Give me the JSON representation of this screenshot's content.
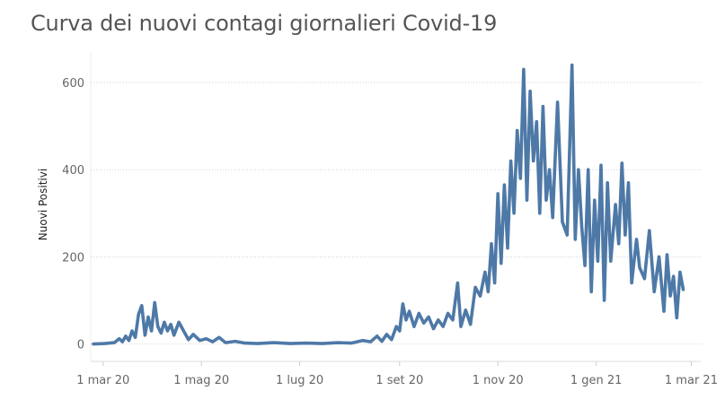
{
  "chart_data": {
    "type": "line",
    "title": "Curva dei nuovi contagi giornalieri Covid-19",
    "xlabel": "",
    "ylabel": "Nuovi Positivi",
    "x_range": [
      "2020-02-24",
      "2021-03-08"
    ],
    "ylim": [
      -40,
      670
    ],
    "y_ticks": [
      0,
      200,
      400,
      600
    ],
    "x_ticks": [
      {
        "date": "2020-03-01",
        "label": "1 mar 20"
      },
      {
        "date": "2020-05-01",
        "label": "1 mag 20"
      },
      {
        "date": "2020-07-01",
        "label": "1 lug 20"
      },
      {
        "date": "2020-09-01",
        "label": "1 set 20"
      },
      {
        "date": "2020-11-01",
        "label": "1 nov 20"
      },
      {
        "date": "2021-01-01",
        "label": "1 gen 21"
      },
      {
        "date": "2021-03-01",
        "label": "1 mar 21"
      }
    ],
    "grid": "horizontal dotted",
    "line_color": "#4e79a7",
    "series": [
      {
        "points": [
          [
            "2020-02-24",
            0
          ],
          [
            "2020-03-02",
            1
          ],
          [
            "2020-03-08",
            3
          ],
          [
            "2020-03-11",
            12
          ],
          [
            "2020-03-13",
            5
          ],
          [
            "2020-03-15",
            18
          ],
          [
            "2020-03-17",
            8
          ],
          [
            "2020-03-19",
            30
          ],
          [
            "2020-03-21",
            15
          ],
          [
            "2020-03-23",
            68
          ],
          [
            "2020-03-25",
            88
          ],
          [
            "2020-03-27",
            20
          ],
          [
            "2020-03-29",
            62
          ],
          [
            "2020-03-31",
            30
          ],
          [
            "2020-04-02",
            95
          ],
          [
            "2020-04-04",
            40
          ],
          [
            "2020-04-06",
            25
          ],
          [
            "2020-04-08",
            50
          ],
          [
            "2020-04-10",
            30
          ],
          [
            "2020-04-12",
            45
          ],
          [
            "2020-04-14",
            20
          ],
          [
            "2020-04-17",
            50
          ],
          [
            "2020-04-20",
            30
          ],
          [
            "2020-04-23",
            10
          ],
          [
            "2020-04-26",
            22
          ],
          [
            "2020-04-30",
            8
          ],
          [
            "2020-05-04",
            12
          ],
          [
            "2020-05-08",
            5
          ],
          [
            "2020-05-12",
            15
          ],
          [
            "2020-05-16",
            3
          ],
          [
            "2020-05-22",
            6
          ],
          [
            "2020-05-28",
            2
          ],
          [
            "2020-06-05",
            1
          ],
          [
            "2020-06-15",
            3
          ],
          [
            "2020-06-25",
            1
          ],
          [
            "2020-07-05",
            2
          ],
          [
            "2020-07-15",
            1
          ],
          [
            "2020-07-25",
            3
          ],
          [
            "2020-08-02",
            2
          ],
          [
            "2020-08-09",
            8
          ],
          [
            "2020-08-14",
            5
          ],
          [
            "2020-08-18",
            18
          ],
          [
            "2020-08-21",
            6
          ],
          [
            "2020-08-24",
            22
          ],
          [
            "2020-08-27",
            10
          ],
          [
            "2020-08-30",
            40
          ],
          [
            "2020-09-01",
            30
          ],
          [
            "2020-09-03",
            92
          ],
          [
            "2020-09-05",
            55
          ],
          [
            "2020-09-07",
            75
          ],
          [
            "2020-09-10",
            40
          ],
          [
            "2020-09-13",
            70
          ],
          [
            "2020-09-16",
            48
          ],
          [
            "2020-09-19",
            62
          ],
          [
            "2020-09-22",
            35
          ],
          [
            "2020-09-25",
            55
          ],
          [
            "2020-09-28",
            40
          ],
          [
            "2020-10-01",
            70
          ],
          [
            "2020-10-04",
            55
          ],
          [
            "2020-10-07",
            140
          ],
          [
            "2020-10-09",
            40
          ],
          [
            "2020-10-12",
            78
          ],
          [
            "2020-10-15",
            45
          ],
          [
            "2020-10-18",
            130
          ],
          [
            "2020-10-21",
            110
          ],
          [
            "2020-10-24",
            165
          ],
          [
            "2020-10-26",
            120
          ],
          [
            "2020-10-28",
            230
          ],
          [
            "2020-10-30",
            140
          ],
          [
            "2020-11-01",
            345
          ],
          [
            "2020-11-03",
            185
          ],
          [
            "2020-11-05",
            365
          ],
          [
            "2020-11-07",
            220
          ],
          [
            "2020-11-09",
            420
          ],
          [
            "2020-11-11",
            300
          ],
          [
            "2020-11-13",
            490
          ],
          [
            "2020-11-15",
            380
          ],
          [
            "2020-11-17",
            630
          ],
          [
            "2020-11-19",
            330
          ],
          [
            "2020-11-21",
            580
          ],
          [
            "2020-11-23",
            420
          ],
          [
            "2020-11-25",
            510
          ],
          [
            "2020-11-27",
            300
          ],
          [
            "2020-11-29",
            545
          ],
          [
            "2020-12-01",
            330
          ],
          [
            "2020-12-03",
            400
          ],
          [
            "2020-12-05",
            290
          ],
          [
            "2020-12-08",
            555
          ],
          [
            "2020-12-11",
            280
          ],
          [
            "2020-12-14",
            250
          ],
          [
            "2020-12-17",
            640
          ],
          [
            "2020-12-19",
            240
          ],
          [
            "2020-12-21",
            400
          ],
          [
            "2020-12-23",
            270
          ],
          [
            "2020-12-25",
            180
          ],
          [
            "2020-12-27",
            400
          ],
          [
            "2020-12-29",
            120
          ],
          [
            "2020-12-31",
            330
          ],
          [
            "2021-01-02",
            190
          ],
          [
            "2021-01-04",
            410
          ],
          [
            "2021-01-06",
            100
          ],
          [
            "2021-01-08",
            370
          ],
          [
            "2021-01-10",
            190
          ],
          [
            "2021-01-13",
            320
          ],
          [
            "2021-01-15",
            230
          ],
          [
            "2021-01-17",
            415
          ],
          [
            "2021-01-19",
            250
          ],
          [
            "2021-01-21",
            370
          ],
          [
            "2021-01-23",
            140
          ],
          [
            "2021-01-26",
            240
          ],
          [
            "2021-01-28",
            175
          ],
          [
            "2021-01-31",
            150
          ],
          [
            "2021-02-03",
            260
          ],
          [
            "2021-02-06",
            120
          ],
          [
            "2021-02-09",
            200
          ],
          [
            "2021-02-12",
            75
          ],
          [
            "2021-02-14",
            205
          ],
          [
            "2021-02-16",
            110
          ],
          [
            "2021-02-18",
            155
          ],
          [
            "2021-02-20",
            60
          ],
          [
            "2021-02-22",
            165
          ],
          [
            "2021-02-24",
            125
          ]
        ]
      }
    ]
  }
}
